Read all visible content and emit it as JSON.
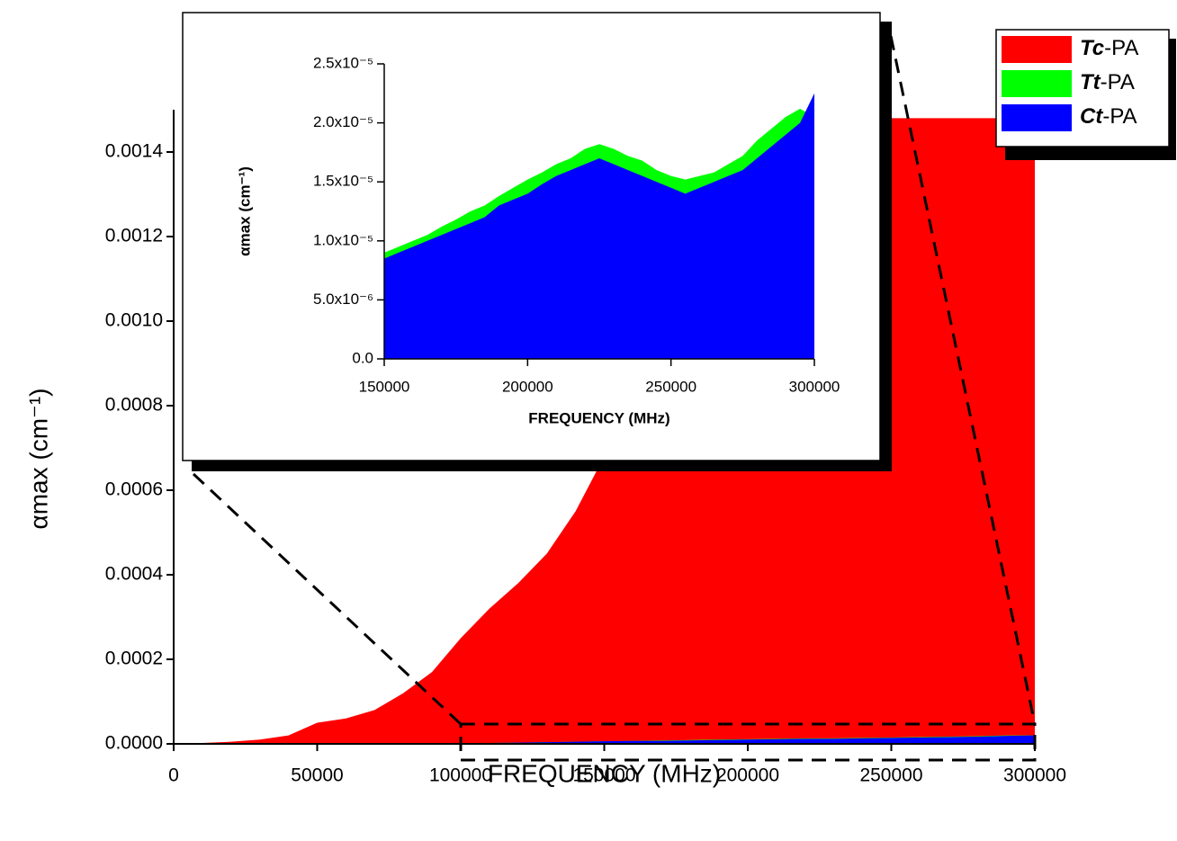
{
  "chart_data": [
    {
      "type": "area",
      "xlabel": "FREQUENCY  (MHz)",
      "ylabel": "αmax (cm⁻¹)",
      "x": [
        0,
        10000,
        20000,
        30000,
        40000,
        50000,
        60000,
        70000,
        80000,
        90000,
        100000,
        110000,
        120000,
        130000,
        140000,
        150000,
        160000,
        170000,
        180000,
        190000,
        200000,
        210000,
        220000,
        230000,
        240000,
        250000,
        260000,
        270000,
        280000,
        290000,
        300000
      ],
      "series": [
        {
          "name": "Tc-PA",
          "color": "#ff0000",
          "values": [
            0,
            2e-06,
            5e-06,
            1e-05,
            2e-05,
            5e-05,
            6e-05,
            8e-05,
            0.00012,
            0.00017,
            0.00025,
            0.00032,
            0.00038,
            0.00045,
            0.00055,
            0.00068,
            0.00078,
            0.00088,
            0.00098,
            0.00108,
            0.00115,
            0.00122,
            0.00128,
            0.00135,
            0.00142,
            0.00148,
            0.00148,
            0.00148,
            0.00148,
            0.00148,
            0.00148
          ]
        },
        {
          "name": "Tt-PA",
          "color": "#00ff00",
          "values": [
            0,
            0,
            0,
            0,
            0,
            0,
            0,
            0,
            0,
            0,
            1e-06,
            2e-06,
            3e-06,
            4e-06,
            5e-06,
            6e-06,
            7e-06,
            8e-06,
            9e-06,
            1e-05,
            1.1e-05,
            1.2e-05,
            1.3e-05,
            1.3e-05,
            1.4e-05,
            1.5e-05,
            1.6e-05,
            1.7e-05,
            1.8e-05,
            2e-05,
            2e-05
          ]
        },
        {
          "name": "Ct-PA",
          "color": "#0000ff",
          "values": [
            0,
            0,
            0,
            0,
            0,
            0,
            0,
            0,
            0,
            0,
            1e-06,
            2e-06,
            3e-06,
            4e-06,
            5e-06,
            6e-06,
            7e-06,
            7e-06,
            8e-06,
            9e-06,
            1e-05,
            1.1e-05,
            1.2e-05,
            1.2e-05,
            1.3e-05,
            1.4e-05,
            1.5e-05,
            1.6e-05,
            1.7e-05,
            1.9e-05,
            2e-05
          ]
        }
      ],
      "xlim": [
        0,
        300000
      ],
      "ylim": [
        0,
        0.0015
      ],
      "xticks": [
        0,
        50000,
        100000,
        150000,
        200000,
        250000,
        300000
      ],
      "yticks": [
        {
          "value": 0,
          "label": "0.0000"
        },
        {
          "value": 0.0002,
          "label": "0.0002"
        },
        {
          "value": 0.0004,
          "label": "0.0004"
        },
        {
          "value": 0.0006,
          "label": "0.0006"
        },
        {
          "value": 0.0008,
          "label": "0.0008"
        },
        {
          "value": 0.001,
          "label": "0.0010"
        },
        {
          "value": 0.0012,
          "label": "0.0012"
        },
        {
          "value": 0.0014,
          "label": "0.0014"
        }
      ],
      "legend": "upper right"
    },
    {
      "type": "area",
      "xlabel": "FREQUENCY  (MHz)",
      "ylabel": "αmax (cm⁻¹)",
      "x": [
        150000,
        155000,
        160000,
        165000,
        170000,
        175000,
        180000,
        185000,
        190000,
        195000,
        200000,
        205000,
        210000,
        215000,
        220000,
        225000,
        230000,
        235000,
        240000,
        245000,
        250000,
        255000,
        260000,
        265000,
        270000,
        275000,
        280000,
        285000,
        290000,
        295000,
        300000
      ],
      "series": [
        {
          "name": "Tt-PA",
          "color": "#00ff00",
          "values": [
            9e-06,
            9.5e-06,
            1e-05,
            1.05e-05,
            1.12e-05,
            1.18e-05,
            1.25e-05,
            1.3e-05,
            1.38e-05,
            1.45e-05,
            1.52e-05,
            1.58e-05,
            1.65e-05,
            1.7e-05,
            1.78e-05,
            1.82e-05,
            1.78e-05,
            1.72e-05,
            1.68e-05,
            1.6e-05,
            1.55e-05,
            1.52e-05,
            1.55e-05,
            1.58e-05,
            1.65e-05,
            1.72e-05,
            1.85e-05,
            1.95e-05,
            2.05e-05,
            2.12e-05,
            2.05e-05
          ]
        },
        {
          "name": "Ct-PA",
          "color": "#0000ff",
          "values": [
            8.5e-06,
            9e-06,
            9.5e-06,
            1e-05,
            1.05e-05,
            1.1e-05,
            1.15e-05,
            1.2e-05,
            1.3e-05,
            1.35e-05,
            1.4e-05,
            1.48e-05,
            1.55e-05,
            1.6e-05,
            1.65e-05,
            1.7e-05,
            1.65e-05,
            1.6e-05,
            1.55e-05,
            1.5e-05,
            1.45e-05,
            1.4e-05,
            1.45e-05,
            1.5e-05,
            1.55e-05,
            1.6e-05,
            1.7e-05,
            1.8e-05,
            1.9e-05,
            2e-05,
            2.25e-05
          ]
        }
      ],
      "xlim": [
        150000,
        300000
      ],
      "ylim": [
        0,
        2.5e-05
      ],
      "xticks": [
        150000,
        200000,
        250000,
        300000
      ],
      "yticks": [
        {
          "value": 0,
          "label": "0.0"
        },
        {
          "value": 5e-06,
          "label": "5.0x10⁻⁶"
        },
        {
          "value": 1e-05,
          "label": "1.0x10⁻⁵"
        },
        {
          "value": 1.5e-05,
          "label": "1.5x10⁻⁵"
        },
        {
          "value": 2e-05,
          "label": "2.0x10⁻⁵"
        },
        {
          "value": 2.5e-05,
          "label": "2.5x10⁻⁵"
        }
      ]
    }
  ]
}
